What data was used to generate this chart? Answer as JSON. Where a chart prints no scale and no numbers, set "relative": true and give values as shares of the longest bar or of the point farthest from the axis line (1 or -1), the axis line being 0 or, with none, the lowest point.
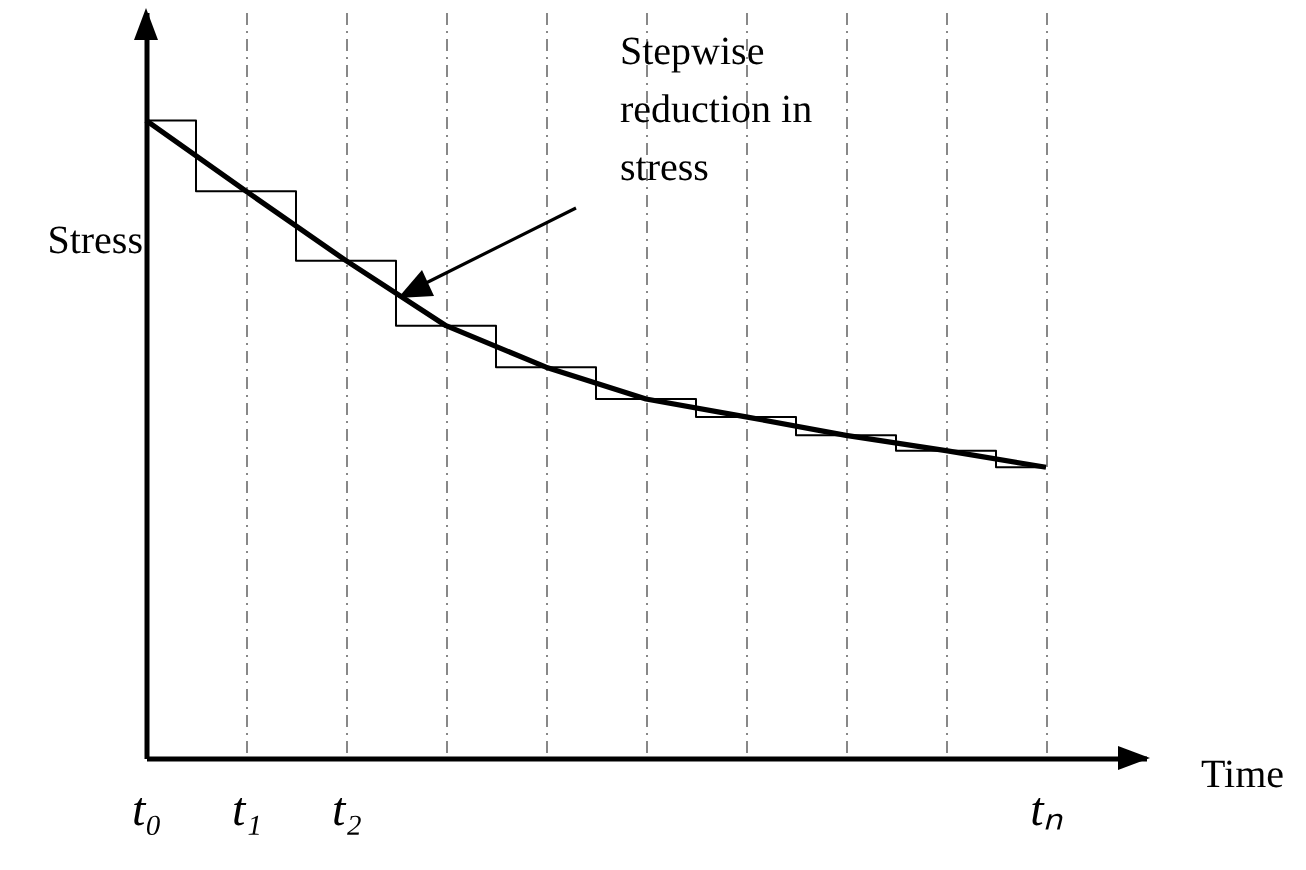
{
  "chart_data": {
    "type": "line",
    "relative": true,
    "ylabel": "Stress",
    "xlabel": "Time",
    "grid": "x",
    "categories": [
      "t₀",
      "t₁",
      "t₂",
      null,
      null,
      null,
      null,
      null,
      null,
      "tₙ"
    ],
    "series": [
      {
        "type": "line",
        "color": "#000000",
        "values": [
          1,
          0.889,
          0.78,
          0.678,
          0.613,
          0.563,
          0.535,
          0.506,
          0.482,
          0.456
        ]
      },
      {
        "type": "step",
        "color": "#000000",
        "values": [
          1,
          0.889,
          0.78,
          0.678,
          0.613,
          0.563,
          0.535,
          0.506,
          0.482,
          0.456
        ]
      }
    ],
    "annotations": [
      "Stepwise reduction in stress"
    ]
  }
}
